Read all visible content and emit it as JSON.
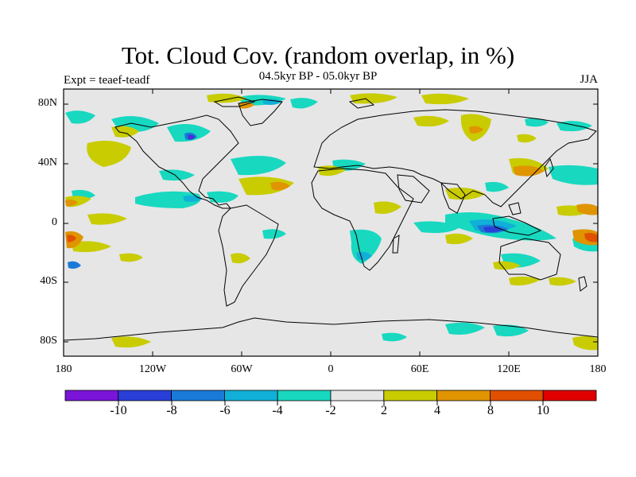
{
  "title": "Tot. Cloud Cov. (random overlap, in %)",
  "subtitle": "04.5kyr BP - 05.0kyr BP",
  "experiment": "Expt = teaef-teadf",
  "season": "JJA",
  "map": {
    "background_color": "#e6e6e6",
    "lat_labels": [
      "80N",
      "40N",
      "0",
      "40S",
      "80S"
    ],
    "lon_labels": [
      "180",
      "120W",
      "60W",
      "0",
      "60E",
      "120E",
      "180"
    ]
  },
  "colorbar": {
    "labels": [
      "-10",
      "-8",
      "-6",
      "-4",
      "-2",
      "2",
      "4",
      "8",
      "10"
    ],
    "colors": [
      "#7a14d8",
      "#2a3fd8",
      "#1a7ad8",
      "#10b0d8",
      "#18d8c0",
      "#e6e6e6",
      "#c8cc00",
      "#e09400",
      "#e05000",
      "#e00000"
    ]
  }
}
